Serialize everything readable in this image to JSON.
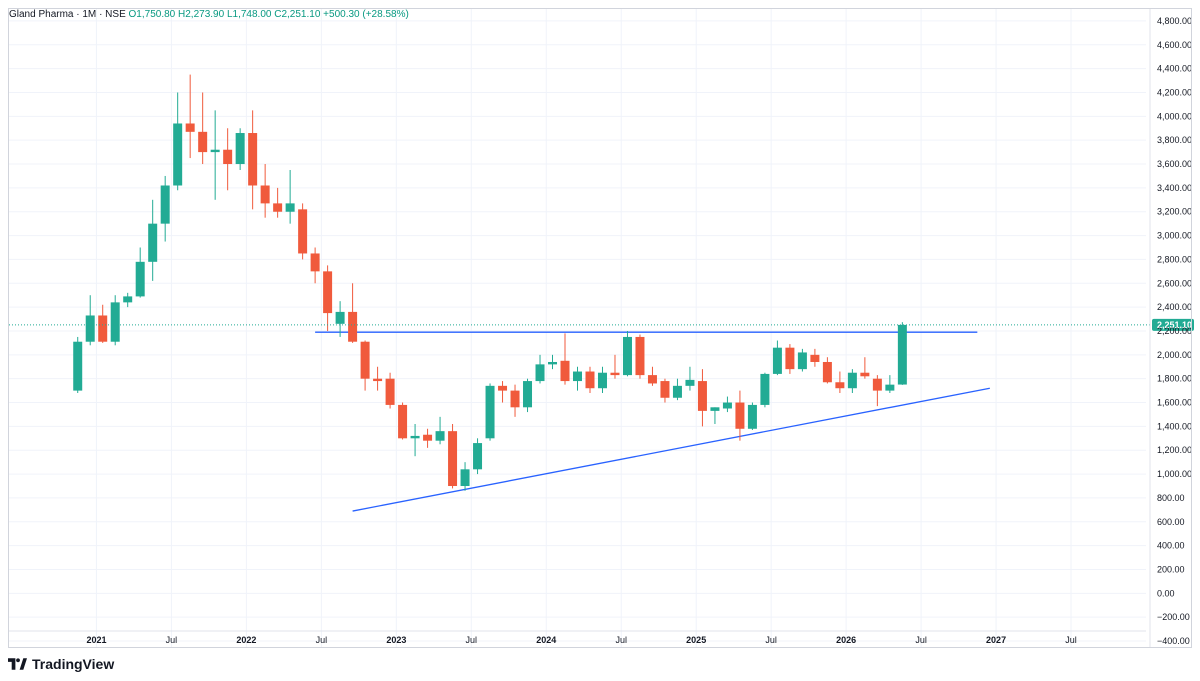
{
  "header": {
    "symbol": "Gland Pharma",
    "interval": "1M",
    "exchange": "NSE",
    "open": "O1,750.80",
    "high": "H2,273.90",
    "low": "L1,748.00",
    "close": "C2,251.10",
    "change": "+500.30 (+28.58%)"
  },
  "brand": {
    "name": "TradingView"
  },
  "colors": {
    "up": "#089981",
    "down": "#f23645",
    "upBody": "#22ab94",
    "downBody": "#f05a3c",
    "trendline": "#2962ff",
    "grid": "#f0f3fa",
    "priceLine": "#22ab94"
  },
  "chart_data": {
    "type": "candlestick",
    "title": "",
    "interval": "1M",
    "ylim": [
      -450,
      4900
    ],
    "y_ticks": [
      -400,
      -200,
      0,
      200,
      400,
      600,
      800,
      1000,
      1200,
      1400,
      1600,
      1800,
      2000,
      2200,
      2400,
      2600,
      2800,
      3000,
      3200,
      3400,
      3600,
      3800,
      4000,
      4200,
      4400,
      4600,
      4800
    ],
    "y_tick_labels": [
      "−400.00",
      "−200.00",
      "0.00",
      "200.00",
      "400.00",
      "600.00",
      "800.00",
      "1,000.00",
      "1,200.00",
      "1,400.00",
      "1,600.00",
      "1,800.00",
      "2,000.00",
      "2,200.00",
      "2,400.00",
      "2,600.00",
      "2,800.00",
      "3,000.00",
      "3,200.00",
      "3,400.00",
      "3,600.00",
      "3,800.00",
      "4,000.00",
      "4,200.00",
      "4,400.00",
      "4,600.00",
      "4,800.00"
    ],
    "x_ticks": [
      {
        "date": "2021-01",
        "label": "2021",
        "bold": true
      },
      {
        "date": "2021-07",
        "label": "Jul",
        "bold": false
      },
      {
        "date": "2022-01",
        "label": "2022",
        "bold": true
      },
      {
        "date": "2022-07",
        "label": "Jul",
        "bold": false
      },
      {
        "date": "2023-01",
        "label": "2023",
        "bold": true
      },
      {
        "date": "2023-07",
        "label": "Jul",
        "bold": false
      },
      {
        "date": "2024-01",
        "label": "2024",
        "bold": true
      },
      {
        "date": "2024-07",
        "label": "Jul",
        "bold": false
      },
      {
        "date": "2025-01",
        "label": "2025",
        "bold": true
      },
      {
        "date": "2025-07",
        "label": "Jul",
        "bold": false
      },
      {
        "date": "2026-01",
        "label": "2026",
        "bold": true
      },
      {
        "date": "2026-07",
        "label": "Jul",
        "bold": false
      },
      {
        "date": "2027-01",
        "label": "2027",
        "bold": true
      },
      {
        "date": "2027-07",
        "label": "Jul",
        "bold": false
      }
    ],
    "x_range": [
      "2020-06",
      "2027-12"
    ],
    "last_price": 2251.1,
    "last_price_label": "2,251.10",
    "candles": [
      {
        "date": "2020-11",
        "o": 1700,
        "h": 2150,
        "l": 1680,
        "c": 2110
      },
      {
        "date": "2020-12",
        "o": 2110,
        "h": 2500,
        "l": 2080,
        "c": 2330
      },
      {
        "date": "2021-01",
        "o": 2330,
        "h": 2420,
        "l": 2100,
        "c": 2110
      },
      {
        "date": "2021-02",
        "o": 2110,
        "h": 2500,
        "l": 2080,
        "c": 2440
      },
      {
        "date": "2021-03",
        "o": 2440,
        "h": 2520,
        "l": 2400,
        "c": 2490
      },
      {
        "date": "2021-04",
        "o": 2490,
        "h": 2900,
        "l": 2480,
        "c": 2780
      },
      {
        "date": "2021-05",
        "o": 2780,
        "h": 3300,
        "l": 2620,
        "c": 3100
      },
      {
        "date": "2021-06",
        "o": 3100,
        "h": 3500,
        "l": 2950,
        "c": 3420
      },
      {
        "date": "2021-07",
        "o": 3420,
        "h": 4200,
        "l": 3380,
        "c": 3940
      },
      {
        "date": "2021-08",
        "o": 3940,
        "h": 4350,
        "l": 3650,
        "c": 3870
      },
      {
        "date": "2021-09",
        "o": 3870,
        "h": 4200,
        "l": 3600,
        "c": 3700
      },
      {
        "date": "2021-10",
        "o": 3700,
        "h": 4050,
        "l": 3300,
        "c": 3720
      },
      {
        "date": "2021-11",
        "o": 3720,
        "h": 3900,
        "l": 3380,
        "c": 3600
      },
      {
        "date": "2021-12",
        "o": 3600,
        "h": 3900,
        "l": 3550,
        "c": 3860
      },
      {
        "date": "2022-01",
        "o": 3860,
        "h": 4050,
        "l": 3220,
        "c": 3420
      },
      {
        "date": "2022-02",
        "o": 3420,
        "h": 3600,
        "l": 3150,
        "c": 3270
      },
      {
        "date": "2022-03",
        "o": 3270,
        "h": 3400,
        "l": 3150,
        "c": 3200
      },
      {
        "date": "2022-04",
        "o": 3200,
        "h": 3550,
        "l": 3100,
        "c": 3270
      },
      {
        "date": "2022-05",
        "o": 3220,
        "h": 3270,
        "l": 2800,
        "c": 2850
      },
      {
        "date": "2022-06",
        "o": 2850,
        "h": 2900,
        "l": 2600,
        "c": 2700
      },
      {
        "date": "2022-07",
        "o": 2700,
        "h": 2750,
        "l": 2200,
        "c": 2350
      },
      {
        "date": "2022-08",
        "o": 2260,
        "h": 2450,
        "l": 2150,
        "c": 2360
      },
      {
        "date": "2022-09",
        "o": 2360,
        "h": 2600,
        "l": 2100,
        "c": 2110
      },
      {
        "date": "2022-10",
        "o": 2110,
        "h": 2120,
        "l": 1700,
        "c": 1800
      },
      {
        "date": "2022-11",
        "o": 1800,
        "h": 1900,
        "l": 1700,
        "c": 1780
      },
      {
        "date": "2022-12",
        "o": 1800,
        "h": 1850,
        "l": 1550,
        "c": 1580
      },
      {
        "date": "2023-01",
        "o": 1580,
        "h": 1600,
        "l": 1290,
        "c": 1300
      },
      {
        "date": "2023-02",
        "o": 1300,
        "h": 1420,
        "l": 1150,
        "c": 1320
      },
      {
        "date": "2023-03",
        "o": 1330,
        "h": 1380,
        "l": 1220,
        "c": 1280
      },
      {
        "date": "2023-04",
        "o": 1280,
        "h": 1480,
        "l": 1250,
        "c": 1360
      },
      {
        "date": "2023-05",
        "o": 1360,
        "h": 1420,
        "l": 880,
        "c": 900
      },
      {
        "date": "2023-06",
        "o": 900,
        "h": 1100,
        "l": 860,
        "c": 1040
      },
      {
        "date": "2023-07",
        "o": 1040,
        "h": 1300,
        "l": 1000,
        "c": 1260
      },
      {
        "date": "2023-08",
        "o": 1300,
        "h": 1760,
        "l": 1280,
        "c": 1740
      },
      {
        "date": "2023-09",
        "o": 1740,
        "h": 1780,
        "l": 1600,
        "c": 1700
      },
      {
        "date": "2023-10",
        "o": 1700,
        "h": 1750,
        "l": 1480,
        "c": 1560
      },
      {
        "date": "2023-11",
        "o": 1560,
        "h": 1800,
        "l": 1520,
        "c": 1780
      },
      {
        "date": "2023-12",
        "o": 1780,
        "h": 2000,
        "l": 1760,
        "c": 1920
      },
      {
        "date": "2024-01",
        "o": 1920,
        "h": 2000,
        "l": 1880,
        "c": 1940
      },
      {
        "date": "2024-02",
        "o": 1950,
        "h": 2180,
        "l": 1750,
        "c": 1780
      },
      {
        "date": "2024-03",
        "o": 1780,
        "h": 1900,
        "l": 1700,
        "c": 1860
      },
      {
        "date": "2024-04",
        "o": 1860,
        "h": 1900,
        "l": 1680,
        "c": 1720
      },
      {
        "date": "2024-05",
        "o": 1720,
        "h": 1900,
        "l": 1680,
        "c": 1850
      },
      {
        "date": "2024-06",
        "o": 1850,
        "h": 2000,
        "l": 1800,
        "c": 1830
      },
      {
        "date": "2024-07",
        "o": 1830,
        "h": 2200,
        "l": 1820,
        "c": 2150
      },
      {
        "date": "2024-08",
        "o": 2150,
        "h": 2170,
        "l": 1800,
        "c": 1830
      },
      {
        "date": "2024-09",
        "o": 1830,
        "h": 1900,
        "l": 1740,
        "c": 1760
      },
      {
        "date": "2024-10",
        "o": 1780,
        "h": 1800,
        "l": 1600,
        "c": 1640
      },
      {
        "date": "2024-11",
        "o": 1640,
        "h": 1800,
        "l": 1620,
        "c": 1740
      },
      {
        "date": "2024-12",
        "o": 1740,
        "h": 1900,
        "l": 1700,
        "c": 1790
      },
      {
        "date": "2025-01",
        "o": 1780,
        "h": 1880,
        "l": 1400,
        "c": 1530
      },
      {
        "date": "2025-02",
        "o": 1530,
        "h": 1560,
        "l": 1420,
        "c": 1560
      },
      {
        "date": "2025-03",
        "o": 1550,
        "h": 1650,
        "l": 1520,
        "c": 1600
      },
      {
        "date": "2025-04",
        "o": 1600,
        "h": 1700,
        "l": 1280,
        "c": 1380
      },
      {
        "date": "2025-05",
        "o": 1380,
        "h": 1600,
        "l": 1370,
        "c": 1580
      },
      {
        "date": "2025-06",
        "o": 1580,
        "h": 1850,
        "l": 1560,
        "c": 1840
      },
      {
        "date": "2025-07",
        "o": 1840,
        "h": 2120,
        "l": 1830,
        "c": 2060
      },
      {
        "date": "2025-08",
        "o": 2060,
        "h": 2090,
        "l": 1840,
        "c": 1880
      },
      {
        "date": "2025-09",
        "o": 1880,
        "h": 2050,
        "l": 1860,
        "c": 2020
      },
      {
        "date": "2025-10",
        "o": 2000,
        "h": 2050,
        "l": 1900,
        "c": 1940
      },
      {
        "date": "2025-11",
        "o": 1940,
        "h": 1980,
        "l": 1760,
        "c": 1770
      },
      {
        "date": "2025-12",
        "o": 1770,
        "h": 1860,
        "l": 1680,
        "c": 1720
      },
      {
        "date": "2026-01",
        "o": 1720,
        "h": 1880,
        "l": 1680,
        "c": 1850
      },
      {
        "date": "2026-02",
        "o": 1850,
        "h": 1980,
        "l": 1800,
        "c": 1820
      },
      {
        "date": "2026-03",
        "o": 1800,
        "h": 1830,
        "l": 1570,
        "c": 1700
      },
      {
        "date": "2026-04",
        "o": 1700,
        "h": 1830,
        "l": 1680,
        "c": 1750
      },
      {
        "date": "2026-05",
        "o": 1750.8,
        "h": 2273.9,
        "l": 1748.0,
        "c": 2251.1
      }
    ],
    "trendlines": [
      {
        "name": "resistance",
        "start": {
          "date": "2022-06",
          "price": 2190
        },
        "end": {
          "date": "2026-11",
          "price": 2190
        }
      },
      {
        "name": "support",
        "start": {
          "date": "2022-09",
          "price": 690
        },
        "end": {
          "date": "2026-12",
          "price": 1720
        }
      }
    ]
  }
}
